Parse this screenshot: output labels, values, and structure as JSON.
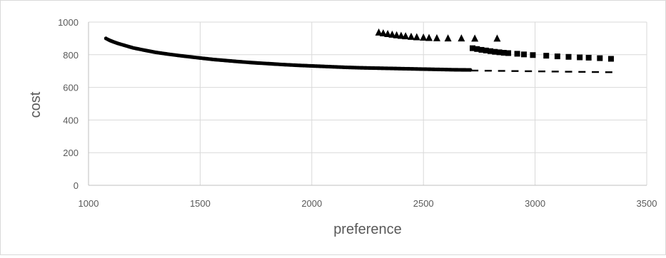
{
  "chart_data": {
    "type": "scatter",
    "xlabel": "preference",
    "ylabel": "cost",
    "xlim": [
      1000,
      3500
    ],
    "ylim": [
      0,
      1000
    ],
    "x_ticks": [
      1000,
      1500,
      2000,
      2500,
      3000,
      3500
    ],
    "y_ticks": [
      0,
      200,
      400,
      600,
      800,
      1000
    ],
    "grid": true,
    "legend": "none",
    "series": [
      {
        "marker": "circle",
        "style": "dense",
        "x": [
          1078,
          1085,
          1095,
          1110,
          1130,
          1160,
          1200,
          1250,
          1300,
          1350,
          1400,
          1450,
          1500,
          1560,
          1620,
          1680,
          1740,
          1800,
          1870,
          1940,
          2010,
          2080,
          2150,
          2220,
          2290,
          2360,
          2430,
          2500,
          2570,
          2640,
          2710
        ],
        "y": [
          900,
          895,
          888,
          880,
          870,
          858,
          842,
          828,
          815,
          805,
          796,
          788,
          780,
          771,
          764,
          757,
          751,
          746,
          740,
          735,
          731,
          727,
          723,
          720,
          718,
          716,
          714,
          712,
          710,
          708,
          707
        ]
      },
      {
        "marker": "dash",
        "style": "sparse",
        "x": [
          2730,
          2790,
          2850,
          2910,
          2970,
          3030,
          3090,
          3150,
          3210,
          3270,
          3330
        ],
        "y": [
          703,
          702,
          701,
          700,
          699,
          698,
          697,
          696,
          695,
          694,
          693
        ]
      },
      {
        "marker": "square",
        "style": "dense",
        "x": [
          2720,
          2740,
          2760,
          2780,
          2800,
          2820,
          2840,
          2860,
          2880,
          2920,
          2950,
          2990,
          3050,
          3100,
          3150,
          3200,
          3240,
          3290,
          3340
        ],
        "y": [
          840,
          835,
          830,
          826,
          822,
          818,
          815,
          812,
          810,
          806,
          802,
          798,
          794,
          790,
          787,
          784,
          782,
          779,
          775
        ]
      },
      {
        "marker": "triangle",
        "style": "dense",
        "x": [
          2300,
          2320,
          2340,
          2360,
          2380,
          2400,
          2420,
          2445,
          2470,
          2500,
          2525,
          2560,
          2610,
          2670,
          2730,
          2830
        ],
        "y": [
          935,
          930,
          926,
          922,
          918,
          915,
          912,
          909,
          906,
          904,
          902,
          900,
          899,
          899,
          898,
          898
        ]
      }
    ]
  }
}
